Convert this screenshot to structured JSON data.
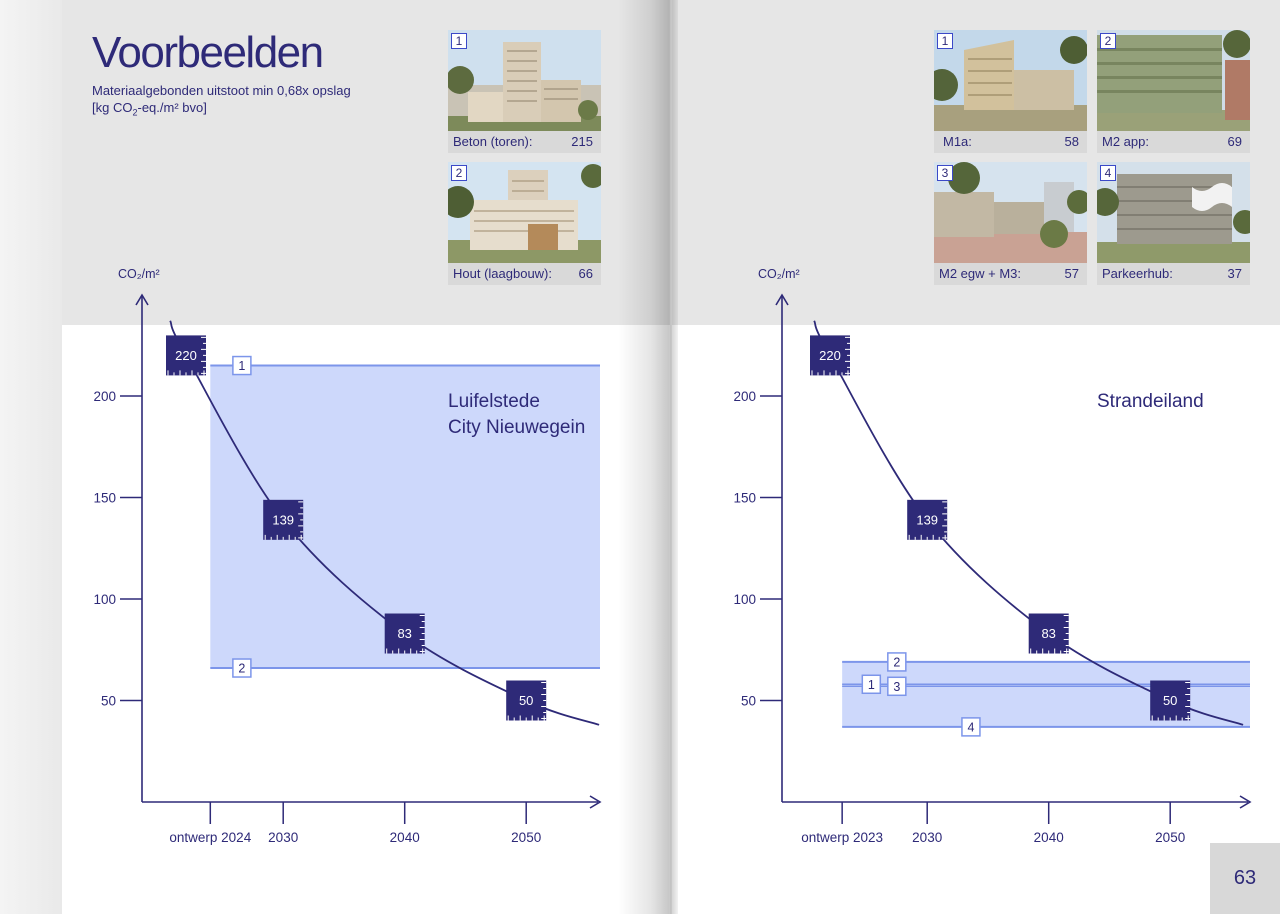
{
  "spread": {
    "heading": "Voorbeelden",
    "subtitle_line1": "Materiaalgebonden uitstoot min 0,68x opslag",
    "subtitle_prefix": "[kg CO",
    "subtitle_sub": "2",
    "subtitle_suffix": "-eq./m² bvo]",
    "page_number": "63"
  },
  "left_photos": [
    {
      "num": "1",
      "label": "Beton (toren):",
      "value": "215"
    },
    {
      "num": "2",
      "label": "Hout (laagbouw):",
      "value": "66"
    }
  ],
  "right_photos": [
    {
      "num": "1",
      "label": "M1a:",
      "value": "58"
    },
    {
      "num": "2",
      "label": "M2 app:",
      "value": "69"
    },
    {
      "num": "3",
      "label": "M2 egw + M3:",
      "value": "57"
    },
    {
      "num": "4",
      "label": "Parkeerhub:",
      "value": "37"
    }
  ],
  "colors": {
    "accent": "#2e2a78",
    "band_fill": "#cdd8fb",
    "band_line": "#7c95ea",
    "panel": "#e6e6e6"
  },
  "chart_data": [
    {
      "type": "line",
      "ylabel": "CO₂/m²",
      "xlabel": "",
      "title": "",
      "x_ticks": [
        "ontwerp 2024",
        "2030",
        "2040",
        "2050"
      ],
      "x_values": [
        2024,
        2030,
        2040,
        2050
      ],
      "y_ticks": [
        50,
        100,
        150,
        200
      ],
      "xlim": [
        2018,
        2056
      ],
      "ylim": [
        0,
        250
      ],
      "annotation_line1": "Luifelstede",
      "annotation_line2": "City Nieuwegein",
      "points": [
        {
          "x": 2022,
          "y": 220,
          "label": "220"
        },
        {
          "x": 2030,
          "y": 139,
          "label": "139"
        },
        {
          "x": 2040,
          "y": 83,
          "label": "83"
        },
        {
          "x": 2050,
          "y": 50,
          "label": "50"
        }
      ],
      "band": {
        "x_start": 2024,
        "low": 66,
        "high": 215
      },
      "markers": [
        {
          "label": "1",
          "y": 215,
          "x": 2026.6
        },
        {
          "label": "2",
          "y": 66,
          "x": 2026.6
        }
      ]
    },
    {
      "type": "line",
      "ylabel": "CO₂/m²",
      "xlabel": "",
      "title": "",
      "x_ticks": [
        "ontwerp 2023",
        "2030",
        "2040",
        "2050"
      ],
      "x_values": [
        2023,
        2030,
        2040,
        2050
      ],
      "y_ticks": [
        50,
        100,
        150,
        200
      ],
      "xlim": [
        2018,
        2056
      ],
      "ylim": [
        0,
        250
      ],
      "annotation_line1": "Strandeiland",
      "annotation_line2": "",
      "points": [
        {
          "x": 2022,
          "y": 220,
          "label": "220"
        },
        {
          "x": 2030,
          "y": 139,
          "label": "139"
        },
        {
          "x": 2040,
          "y": 83,
          "label": "83"
        },
        {
          "x": 2050,
          "y": 50,
          "label": "50"
        }
      ],
      "band": {
        "x_start": 2023,
        "low": 37,
        "high": 69
      },
      "markers": [
        {
          "label": "1",
          "y": 58,
          "x": 2025.4
        },
        {
          "label": "2",
          "y": 69,
          "x": 2027.5
        },
        {
          "label": "3",
          "y": 57,
          "x": 2027.5
        },
        {
          "label": "4",
          "y": 37,
          "x": 2033.6
        }
      ]
    }
  ]
}
